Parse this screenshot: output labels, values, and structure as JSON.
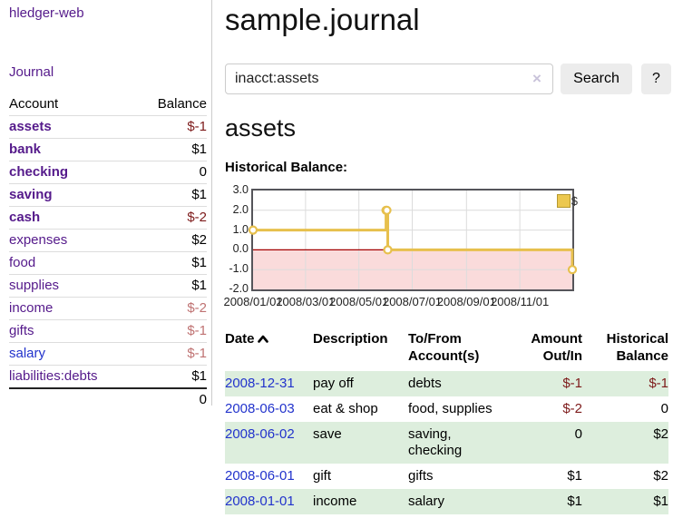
{
  "colors": {
    "link_purple": "#551a8b",
    "link_blue": "#2233cc",
    "negative_red": "#7d1a1a",
    "negative_rose": "#bf7272",
    "row_green": "#ddeedd",
    "chart_gold": "#e7c04d",
    "chart_negative_pink": "#fadbdb",
    "chart_zero_red": "#a40000"
  },
  "sidebar": {
    "brand": "hledger-web",
    "journal_link": "Journal",
    "accounts_table": {
      "account_header": "Account",
      "balance_header": "Balance",
      "rows": [
        {
          "name": "assets",
          "balance": "$-1"
        },
        {
          "name": "bank",
          "balance": "$1"
        },
        {
          "name": "checking",
          "balance": "0"
        },
        {
          "name": "saving",
          "balance": "$1"
        },
        {
          "name": "cash",
          "balance": "$-2"
        },
        {
          "name": "expenses",
          "balance": "$2"
        },
        {
          "name": "food",
          "balance": "$1"
        },
        {
          "name": "supplies",
          "balance": "$1"
        },
        {
          "name": "income",
          "balance": "$-2"
        },
        {
          "name": "gifts",
          "balance": "$-1"
        },
        {
          "name": "salary",
          "balance": "$-1"
        },
        {
          "name": "liabilities:debts",
          "balance": "$1"
        }
      ],
      "total": "0"
    }
  },
  "main": {
    "title": "sample.journal",
    "search": {
      "value": "inacct:assets",
      "clear_icon": "×",
      "search_button": "Search",
      "help_button": "?"
    },
    "account_heading": "assets",
    "chart_title": "Historical Balance:"
  },
  "chart_data": {
    "type": "line",
    "step": "after",
    "title": "Historical Balance:",
    "series": [
      {
        "name": "$",
        "points": [
          [
            "2008-01-01",
            1
          ],
          [
            "2008-06-01",
            2
          ],
          [
            "2008-06-02",
            2
          ],
          [
            "2008-06-03",
            0
          ],
          [
            "2008-12-31",
            -1
          ]
        ]
      }
    ],
    "x_range": [
      "2008-01-01",
      "2008-12-31"
    ],
    "ylim": [
      -2,
      3
    ],
    "y_ticks": [
      3,
      2,
      1,
      0,
      -1,
      -2
    ],
    "x_ticks": [
      {
        "date": "2008-01-01",
        "label": "2008/01/01"
      },
      {
        "date": "2008-03-01",
        "label": "2008/03/01"
      },
      {
        "date": "2008-05-01",
        "label": "2008/05/01"
      },
      {
        "date": "2008-07-01",
        "label": "2008/07/01"
      },
      {
        "date": "2008-09-01",
        "label": "2008/09/01"
      },
      {
        "date": "2008-11-01",
        "label": "2008/11/01"
      }
    ],
    "legend": {
      "position": "top-right",
      "label": "$"
    },
    "grid": true,
    "line_color": "#e7c04d",
    "negative_fill": "#fadbdb",
    "zero_line_color": "#a40000"
  },
  "transactions": {
    "headers": [
      "Date",
      "Description",
      "To/From Account(s)",
      "Amount Out/In",
      "Historical Balance"
    ],
    "rows": [
      {
        "date": "2008-12-31",
        "description": "pay off",
        "to_from": "debts",
        "amount": "$-1",
        "balance": "$-1"
      },
      {
        "date": "2008-06-03",
        "description": "eat & shop",
        "to_from": "food, supplies",
        "amount": "$-2",
        "balance": "0"
      },
      {
        "date": "2008-06-02",
        "description": "save",
        "to_from": "saving,\nchecking",
        "amount": "0",
        "balance": "$2"
      },
      {
        "date": "2008-06-01",
        "description": "gift",
        "to_from": "gifts",
        "amount": "$1",
        "balance": "$2"
      },
      {
        "date": "2008-01-01",
        "description": "income",
        "to_from": "salary",
        "amount": "$1",
        "balance": "$1"
      }
    ]
  }
}
